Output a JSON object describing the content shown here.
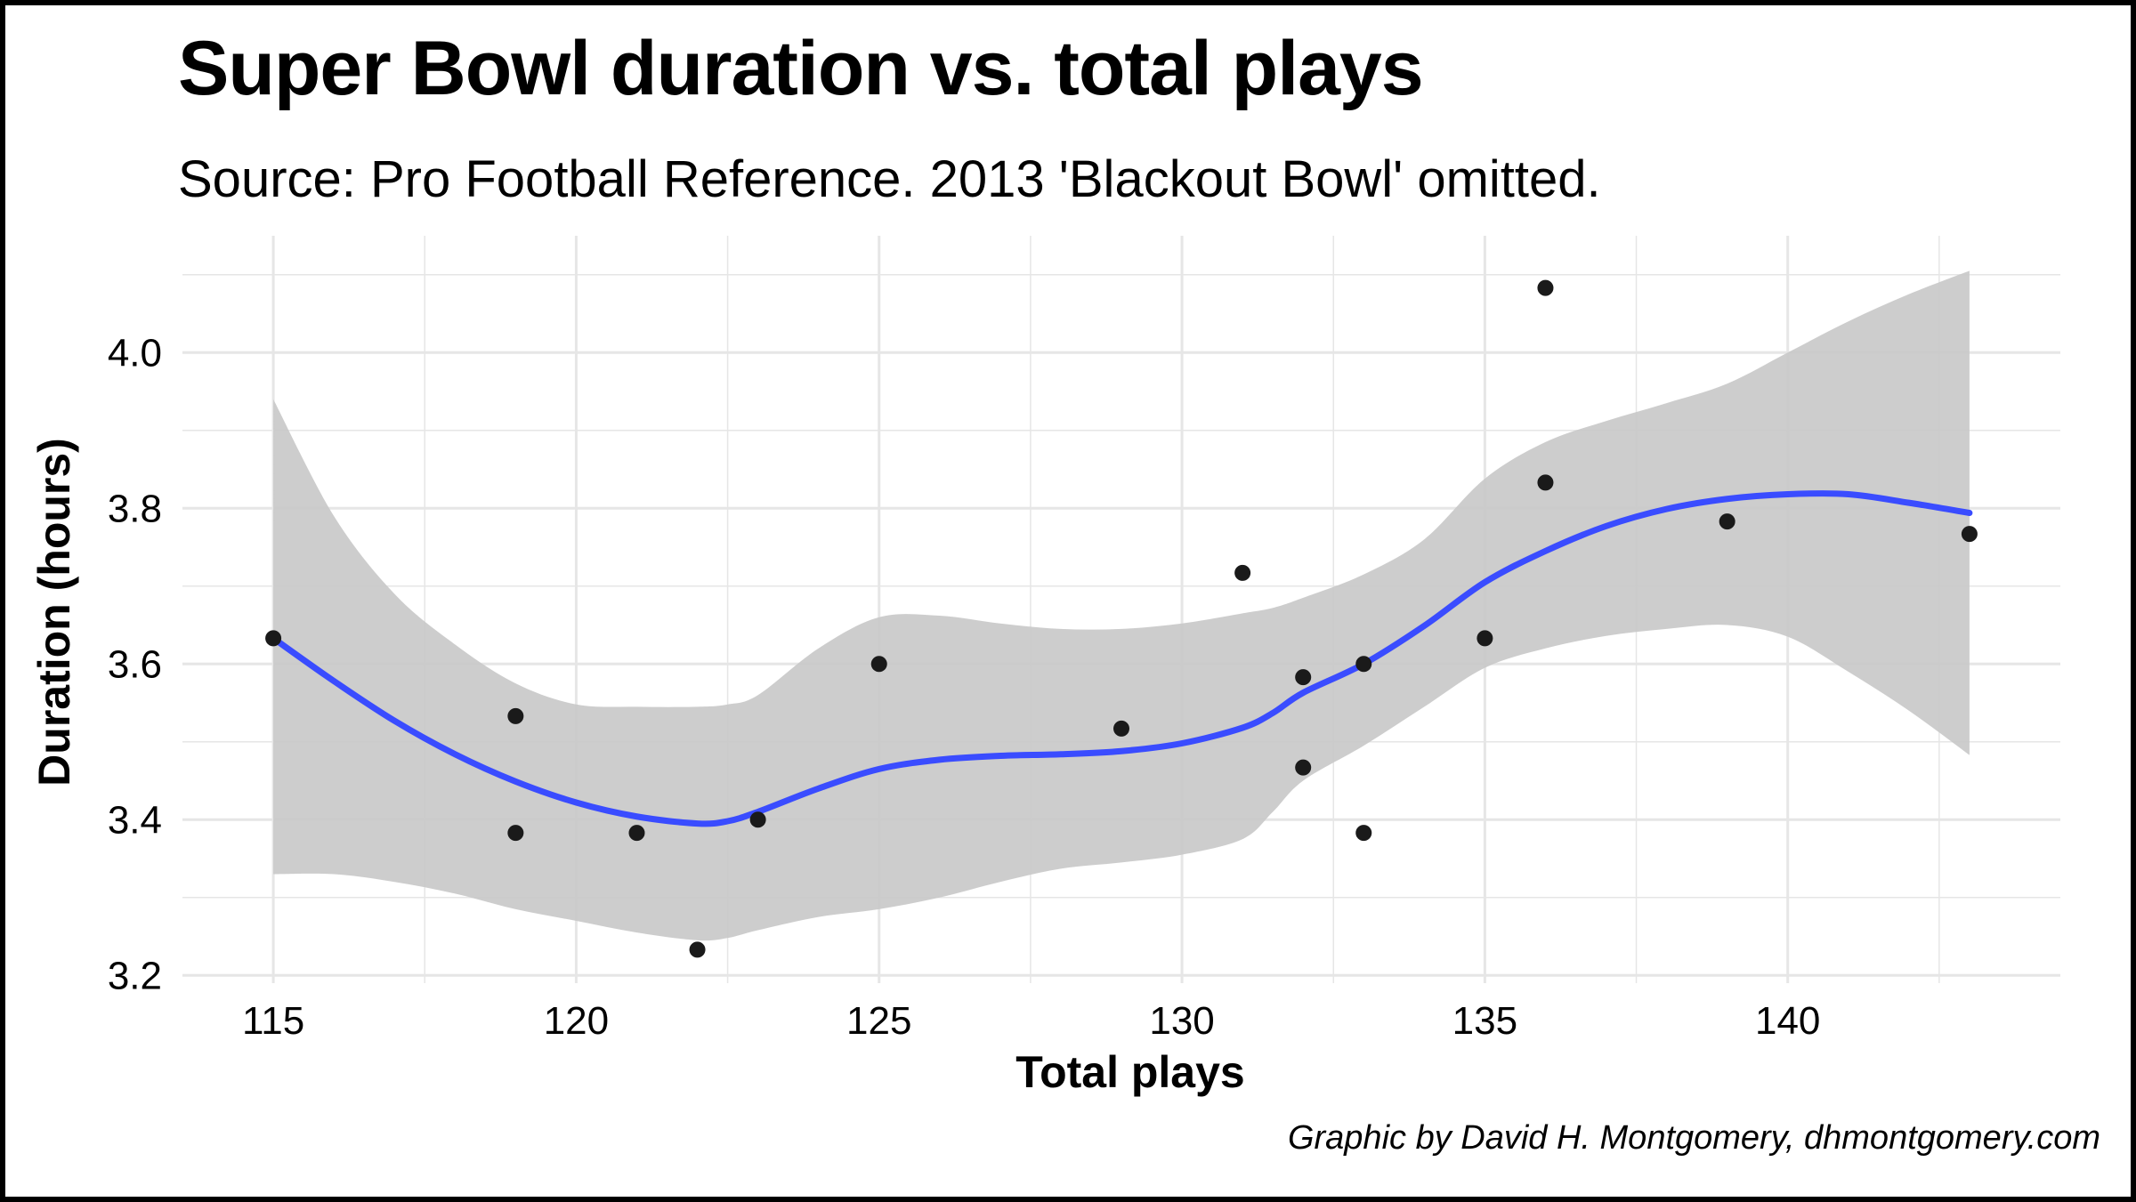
{
  "chart_data": {
    "type": "scatter",
    "title": "Super Bowl duration vs. total plays",
    "subtitle": "Source: Pro Football Reference. 2013 'Blackout Bowl' omitted.",
    "caption": "Graphic by David H. Montgomery, dhmontgomery.com",
    "xlabel": "Total plays",
    "ylabel": "Duration (hours)",
    "xlim": [
      113.5,
      144.5
    ],
    "ylim": [
      3.19,
      4.15
    ],
    "x_ticks": [
      115,
      120,
      125,
      130,
      135,
      140
    ],
    "y_ticks": [
      3.2,
      3.4,
      3.6,
      3.8,
      4.0
    ],
    "x_tick_labels": [
      "115",
      "120",
      "125",
      "130",
      "135",
      "140"
    ],
    "y_tick_labels": [
      "3.2",
      "3.4",
      "3.6",
      "3.8",
      "4.0"
    ],
    "grid": true,
    "points": [
      {
        "x": 115,
        "y": 3.633
      },
      {
        "x": 119,
        "y": 3.533
      },
      {
        "x": 119,
        "y": 3.383
      },
      {
        "x": 121,
        "y": 3.383
      },
      {
        "x": 122,
        "y": 3.233
      },
      {
        "x": 123,
        "y": 3.4
      },
      {
        "x": 125,
        "y": 3.6
      },
      {
        "x": 129,
        "y": 3.517
      },
      {
        "x": 131,
        "y": 3.717
      },
      {
        "x": 132,
        "y": 3.583
      },
      {
        "x": 132,
        "y": 3.467
      },
      {
        "x": 133,
        "y": 3.6
      },
      {
        "x": 133,
        "y": 3.383
      },
      {
        "x": 135,
        "y": 3.633
      },
      {
        "x": 136,
        "y": 4.083
      },
      {
        "x": 136,
        "y": 3.833
      },
      {
        "x": 139,
        "y": 3.783
      },
      {
        "x": 143,
        "y": 3.767
      }
    ],
    "smooth_fit": {
      "x": [
        115,
        116,
        117,
        118,
        119,
        120,
        121,
        122,
        122.5,
        123,
        124,
        125,
        126,
        127,
        128,
        129,
        130,
        131,
        131.5,
        132,
        133,
        134,
        135,
        136,
        137,
        138,
        139,
        140,
        141,
        142,
        143
      ],
      "y": [
        3.633,
        3.578,
        3.527,
        3.484,
        3.449,
        3.422,
        3.404,
        3.395,
        3.398,
        3.41,
        3.44,
        3.465,
        3.477,
        3.482,
        3.484,
        3.488,
        3.498,
        3.518,
        3.537,
        3.563,
        3.6,
        3.649,
        3.705,
        3.745,
        3.777,
        3.799,
        3.812,
        3.818,
        3.818,
        3.807,
        3.794
      ],
      "lower": [
        3.33,
        3.33,
        3.32,
        3.305,
        3.285,
        3.27,
        3.255,
        3.245,
        3.248,
        3.258,
        3.275,
        3.285,
        3.3,
        3.32,
        3.337,
        3.345,
        3.355,
        3.375,
        3.41,
        3.45,
        3.495,
        3.545,
        3.595,
        3.62,
        3.636,
        3.645,
        3.65,
        3.635,
        3.59,
        3.54,
        3.483
      ],
      "upper": [
        3.94,
        3.79,
        3.69,
        3.625,
        3.575,
        3.548,
        3.545,
        3.545,
        3.548,
        3.56,
        3.62,
        3.66,
        3.662,
        3.652,
        3.645,
        3.645,
        3.652,
        3.665,
        3.672,
        3.685,
        3.715,
        3.76,
        3.838,
        3.885,
        3.912,
        3.935,
        3.96,
        4.0,
        4.04,
        4.075,
        4.105
      ]
    },
    "colors": {
      "point": "#1a1a1a",
      "fit_line": "#3a4cff",
      "band": "#c8c8c8",
      "grid": "#e6e6e6"
    }
  }
}
